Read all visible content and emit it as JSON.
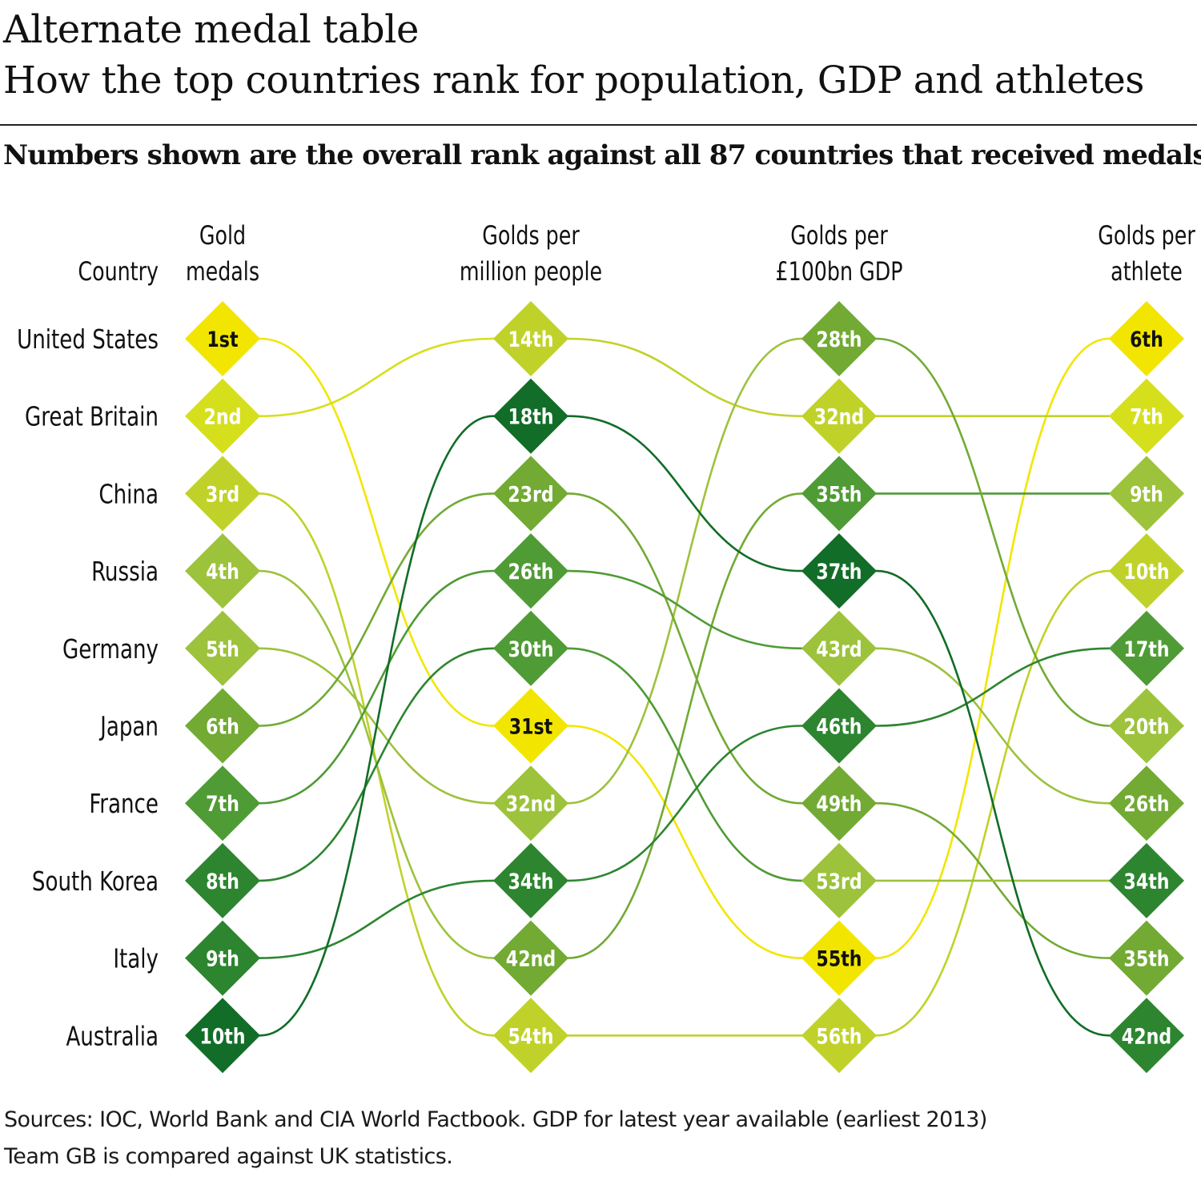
{
  "title": "Alternate medal table",
  "subtitle": "How the top countries rank for population, GDP and athletes",
  "note": "Numbers shown are the overall rank against all 87 countries that received medals",
  "sources": [
    "Sources: IOC, World Bank and CIA World Factbook. GDP for latest year available (earliest 2013)",
    "Team GB is compared against UK statistics."
  ],
  "chart_data": {
    "type": "slope",
    "country_header": "Country",
    "columns": [
      [
        "Gold",
        "medals"
      ],
      [
        "Golds per",
        "million people"
      ],
      [
        "Golds per",
        "£100bn GDP"
      ],
      [
        "Golds per",
        "athlete"
      ]
    ],
    "countries": [
      {
        "name": "United States",
        "ranks": [
          1,
          31,
          55,
          6
        ],
        "labels": [
          "1st",
          "31st",
          "55th",
          "6th"
        ]
      },
      {
        "name": "Great Britain",
        "ranks": [
          2,
          14,
          32,
          7
        ],
        "labels": [
          "2nd",
          "14th",
          "32nd",
          "7th"
        ]
      },
      {
        "name": "China",
        "ranks": [
          3,
          54,
          56,
          10
        ],
        "labels": [
          "3rd",
          "54th",
          "56th",
          "10th"
        ]
      },
      {
        "name": "Russia",
        "ranks": [
          4,
          42,
          35,
          9
        ],
        "labels": [
          "4th",
          "42nd",
          "35th",
          "9th"
        ]
      },
      {
        "name": "Germany",
        "ranks": [
          5,
          32,
          28,
          20
        ],
        "labels": [
          "5th",
          "32nd",
          "28th",
          "20th"
        ]
      },
      {
        "name": "Japan",
        "ranks": [
          6,
          23,
          49,
          35
        ],
        "labels": [
          "6th",
          "23rd",
          "49th",
          "35th"
        ]
      },
      {
        "name": "France",
        "ranks": [
          7,
          26,
          43,
          26
        ],
        "labels": [
          "7th",
          "26th",
          "43rd",
          "26th"
        ]
      },
      {
        "name": "South Korea",
        "ranks": [
          8,
          30,
          53,
          34
        ],
        "labels": [
          "8th",
          "30th",
          "53rd",
          "34th"
        ]
      },
      {
        "name": "Italy",
        "ranks": [
          9,
          34,
          46,
          17
        ],
        "labels": [
          "9th",
          "34th",
          "46th",
          "17th"
        ]
      },
      {
        "name": "Australia",
        "ranks": [
          10,
          18,
          37,
          42
        ],
        "labels": [
          "10th",
          "18th",
          "37th",
          "42nd"
        ]
      }
    ],
    "colors": {
      "c1": "#f2e600",
      "c2": "#d6df1c",
      "c3": "#c0d22a",
      "c4": "#9dc23c",
      "c5": "#72aa34",
      "c6": "#4f9b35",
      "c7": "#2d8530",
      "c8": "#116d27"
    }
  }
}
